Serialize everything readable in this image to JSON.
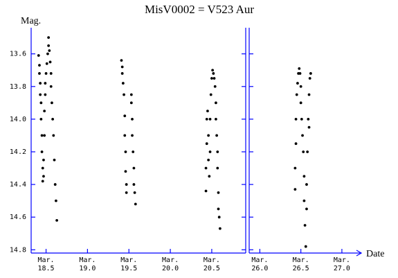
{
  "chart_data": [
    {
      "type": "scatter",
      "title": "MisV0002 = V523 Aur",
      "y_label": "Mag.",
      "color": "#000000",
      "xlim": [
        18.32,
        20.91
      ],
      "ylim": [
        13.44,
        14.82
      ],
      "y_inverted": true,
      "xticks": [
        {
          "value": 18.5,
          "label": "Mar. 18.5"
        },
        {
          "value": 19.0,
          "label": "Mar. 19.0"
        },
        {
          "value": 19.5,
          "label": "Mar. 19.5"
        },
        {
          "value": 20.0,
          "label": "Mar. 20.0"
        },
        {
          "value": 20.5,
          "label": "Mar. 20.5"
        }
      ],
      "yticks": [
        13.6,
        13.8,
        {
          "value": 14.0,
          "label": "14.0"
        },
        14.2,
        14.4,
        14.6,
        14.8
      ],
      "x": [
        18.41,
        18.42,
        18.42,
        18.43,
        18.43,
        18.44,
        18.44,
        18.45,
        18.45,
        18.46,
        18.46,
        18.47,
        18.47,
        18.48,
        18.48,
        18.49,
        18.49,
        18.5,
        18.51,
        18.52,
        18.53,
        18.53,
        18.54,
        18.55,
        18.56,
        18.56,
        18.57,
        18.58,
        18.59,
        18.6,
        18.61,
        18.62,
        18.63,
        19.41,
        19.42,
        19.42,
        19.43,
        19.44,
        19.45,
        19.45,
        19.46,
        19.46,
        19.47,
        19.47,
        19.53,
        19.53,
        19.54,
        19.54,
        19.55,
        19.56,
        19.56,
        19.57,
        19.58,
        20.43,
        20.43,
        20.44,
        20.44,
        20.45,
        20.46,
        20.46,
        20.47,
        20.48,
        20.48,
        20.49,
        20.5,
        20.51,
        20.52,
        20.53,
        20.54,
        20.55,
        20.55,
        20.56,
        20.57,
        20.57,
        20.58,
        20.58,
        20.59,
        20.6
      ],
      "values": [
        13.61,
        13.67,
        13.72,
        13.78,
        13.85,
        13.9,
        14.0,
        14.1,
        14.2,
        14.3,
        14.38,
        14.35,
        14.25,
        14.1,
        13.95,
        13.85,
        13.78,
        13.72,
        13.66,
        13.6,
        13.55,
        13.5,
        13.58,
        13.65,
        13.72,
        13.8,
        13.9,
        14.0,
        14.1,
        14.25,
        14.4,
        14.5,
        14.62,
        13.64,
        13.68,
        13.72,
        13.78,
        13.85,
        13.98,
        14.1,
        14.2,
        14.32,
        14.4,
        14.45,
        13.85,
        13.9,
        14.0,
        14.1,
        14.2,
        14.3,
        14.4,
        14.45,
        14.52,
        14.44,
        14.3,
        14.15,
        14.0,
        13.95,
        14.1,
        14.25,
        14.35,
        14.2,
        14.0,
        13.85,
        13.75,
        13.7,
        13.72,
        13.75,
        13.8,
        13.9,
        14.0,
        14.1,
        14.2,
        14.3,
        14.45,
        14.55,
        14.6,
        14.67
      ]
    },
    {
      "type": "scatter",
      "x_label": "Date",
      "color": "#000000",
      "xlim": [
        25.87,
        27.22
      ],
      "ylim": [
        13.44,
        14.82
      ],
      "y_inverted": true,
      "xticks": [
        {
          "value": 26.0,
          "label": "Mar. 26.0"
        },
        {
          "value": 26.5,
          "label": "Mar. 26.5"
        },
        {
          "value": 27.0,
          "label": "Mar. 27.0"
        }
      ],
      "x": [
        26.43,
        26.43,
        26.44,
        26.44,
        26.45,
        26.46,
        26.47,
        26.48,
        26.49,
        26.5,
        26.5,
        26.51,
        26.52,
        26.53,
        26.54,
        26.54,
        26.55,
        26.56,
        26.57,
        26.57,
        26.58,
        26.59,
        26.6,
        26.61,
        26.62,
        26.6
      ],
      "values": [
        14.43,
        14.3,
        14.15,
        14.0,
        13.85,
        13.78,
        13.72,
        13.69,
        13.72,
        13.8,
        13.9,
        14.0,
        14.1,
        14.2,
        14.35,
        14.5,
        14.65,
        14.78,
        14.55,
        14.4,
        14.2,
        14.0,
        13.85,
        13.75,
        13.72,
        14.05
      ]
    }
  ]
}
